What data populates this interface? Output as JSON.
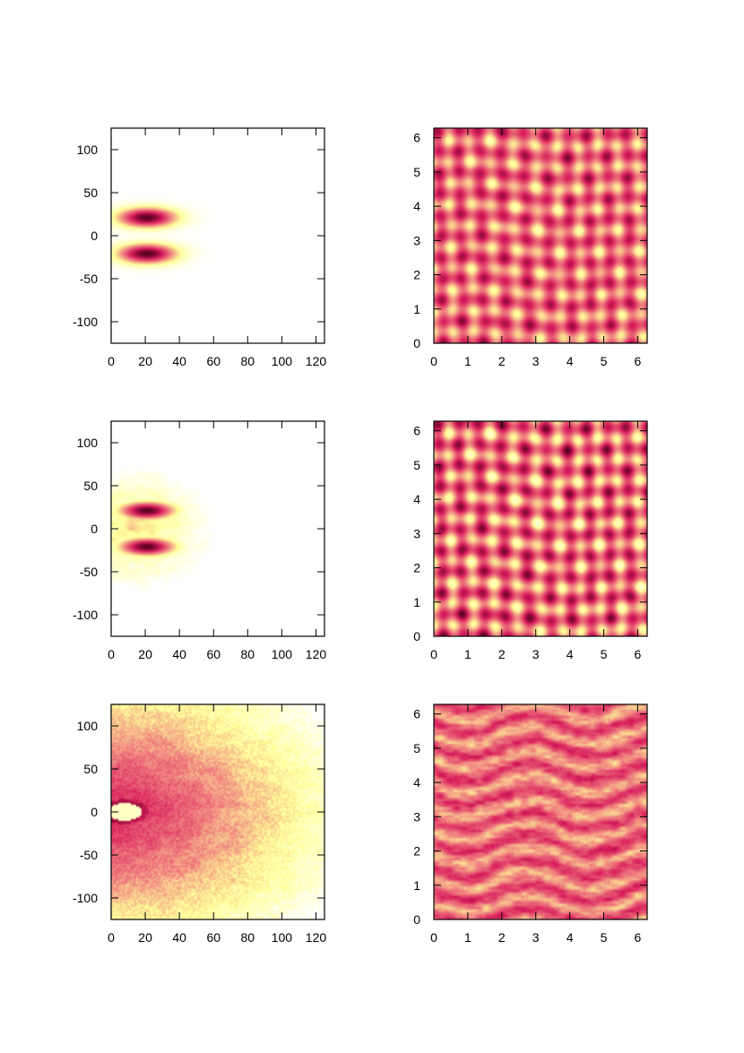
{
  "chart_data": [
    {
      "type": "heatmap",
      "panel": "top-left",
      "xlim": [
        0,
        125
      ],
      "ylim": [
        -125,
        125
      ],
      "xticks": [
        0,
        20,
        40,
        60,
        80,
        100,
        120
      ],
      "yticks": [
        -100,
        -50,
        0,
        50,
        100
      ],
      "xtick_labels": [
        "0",
        "20",
        "40",
        "60",
        "80",
        "100",
        "120"
      ],
      "ytick_labels": [
        "-100",
        "-50",
        "0",
        "50",
        "100"
      ],
      "pattern": "blobs",
      "blobs": [
        {
          "x": 21,
          "y": 21,
          "sx": 12,
          "sy": 8,
          "amp": 1.0
        },
        {
          "x": 21,
          "y": -21,
          "sx": 12,
          "sy": 8,
          "amp": 1.0
        }
      ]
    },
    {
      "type": "heatmap",
      "panel": "top-right",
      "xlim": [
        0,
        6.28
      ],
      "ylim": [
        0,
        6.28
      ],
      "xticks": [
        0,
        1,
        2,
        3,
        4,
        5,
        6
      ],
      "yticks": [
        0,
        1,
        2,
        3,
        4,
        5,
        6
      ],
      "xtick_labels": [
        "0",
        "1",
        "2",
        "3",
        "4",
        "5",
        "6"
      ],
      "ytick_labels": [
        "0",
        "1",
        "2",
        "3",
        "4",
        "5",
        "6"
      ],
      "pattern": "interference"
    },
    {
      "type": "heatmap",
      "panel": "middle-left",
      "xlim": [
        0,
        125
      ],
      "ylim": [
        -125,
        125
      ],
      "xticks": [
        0,
        20,
        40,
        60,
        80,
        100,
        120
      ],
      "yticks": [
        -100,
        -50,
        0,
        50,
        100
      ],
      "xtick_labels": [
        "0",
        "20",
        "40",
        "60",
        "80",
        "100",
        "120"
      ],
      "ytick_labels": [
        "-100",
        "-50",
        "0",
        "50",
        "100"
      ],
      "pattern": "blobs-halo",
      "blobs": [
        {
          "x": 21,
          "y": 21,
          "sx": 11,
          "sy": 7,
          "amp": 1.0
        },
        {
          "x": 21,
          "y": -21,
          "sx": 11,
          "sy": 7,
          "amp": 1.0
        }
      ]
    },
    {
      "type": "heatmap",
      "panel": "middle-right",
      "xlim": [
        0,
        6.28
      ],
      "ylim": [
        0,
        6.28
      ],
      "xticks": [
        0,
        1,
        2,
        3,
        4,
        5,
        6
      ],
      "yticks": [
        0,
        1,
        2,
        3,
        4,
        5,
        6
      ],
      "xtick_labels": [
        "0",
        "1",
        "2",
        "3",
        "4",
        "5",
        "6"
      ],
      "ytick_labels": [
        "0",
        "1",
        "2",
        "3",
        "4",
        "5",
        "6"
      ],
      "pattern": "interference-strong"
    },
    {
      "type": "heatmap",
      "panel": "bottom-left",
      "xlim": [
        0,
        125
      ],
      "ylim": [
        -125,
        125
      ],
      "xticks": [
        0,
        20,
        40,
        60,
        80,
        100,
        120
      ],
      "yticks": [
        -100,
        -50,
        0,
        50,
        100
      ],
      "xtick_labels": [
        "0",
        "20",
        "40",
        "60",
        "80",
        "100",
        "120"
      ],
      "ytick_labels": [
        "-100",
        "-50",
        "0",
        "50",
        "100"
      ],
      "pattern": "diffuse",
      "hole": {
        "x": 8,
        "y": 0,
        "r": 10
      }
    },
    {
      "type": "heatmap",
      "panel": "bottom-right",
      "xlim": [
        0,
        6.28
      ],
      "ylim": [
        0,
        6.28
      ],
      "xticks": [
        0,
        1,
        2,
        3,
        4,
        5,
        6
      ],
      "yticks": [
        0,
        1,
        2,
        3,
        4,
        5,
        6
      ],
      "xtick_labels": [
        "0",
        "1",
        "2",
        "3",
        "4",
        "5",
        "6"
      ],
      "ytick_labels": [
        "0",
        "1",
        "2",
        "3",
        "4",
        "5",
        "6"
      ],
      "pattern": "turbulent"
    }
  ],
  "colormap": [
    "#ffffff",
    "#ffff99",
    "#f08080",
    "#d81c5c",
    "#5a0020"
  ]
}
